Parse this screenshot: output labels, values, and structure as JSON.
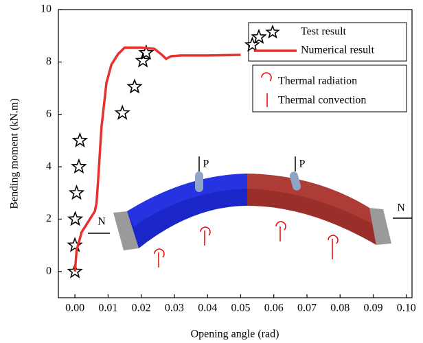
{
  "chart_data": {
    "type": "scatter-line",
    "x_label": "Opening angle (rad)",
    "y_label": "Bending moment (kN.m)",
    "xlim": [
      -0.005,
      0.1017
    ],
    "ylim": [
      -1,
      10
    ],
    "xticks": [
      {
        "value": 0,
        "label": "0.00"
      },
      {
        "value": 0.01,
        "label": "0.01"
      },
      {
        "value": 0.02,
        "label": "0.02"
      },
      {
        "value": 0.03,
        "label": "0.03"
      },
      {
        "value": 0.04,
        "label": "0.04"
      },
      {
        "value": 0.05,
        "label": "0.05"
      },
      {
        "value": 0.06,
        "label": "0.06"
      },
      {
        "value": 0.07,
        "label": "0.07"
      },
      {
        "value": 0.08,
        "label": "0.08"
      },
      {
        "value": 0.09,
        "label": "0.09"
      },
      {
        "value": 0.1,
        "label": "0.10"
      }
    ],
    "yticks": [
      0,
      2,
      4,
      6,
      8,
      10
    ],
    "series": [
      {
        "name": "Test result",
        "kind": "scatter",
        "color": "#000000",
        "x": [
          0,
          0,
          0.0001,
          0.0005,
          0.0012,
          0.0015,
          0.0143,
          0.018,
          0.0205,
          0.0215,
          0.0535,
          0.0555
        ],
        "values": [
          0,
          1,
          2,
          3,
          4,
          5,
          6.05,
          7.05,
          8.05,
          8.35,
          8.65,
          8.95
        ]
      },
      {
        "name": "Numerical result",
        "kind": "line",
        "color": "#e8312f",
        "x": [
          0,
          0.0005,
          0.002,
          0.004,
          0.006,
          0.0065,
          0.007,
          0.008,
          0.0095,
          0.011,
          0.013,
          0.015,
          0.02,
          0.024,
          0.026,
          0.0275,
          0.029,
          0.032,
          0.04,
          0.05
        ],
        "values": [
          0,
          0.8,
          1.5,
          1.9,
          2.3,
          2.6,
          3.5,
          5.5,
          7.2,
          7.9,
          8.3,
          8.55,
          8.55,
          8.5,
          8.3,
          8.12,
          8.22,
          8.25,
          8.25,
          8.27
        ]
      }
    ],
    "annotations": [
      "P",
      "P",
      "N",
      "N"
    ],
    "thermal_legend": [
      "Thermal radiation",
      "Thermal convection"
    ]
  }
}
